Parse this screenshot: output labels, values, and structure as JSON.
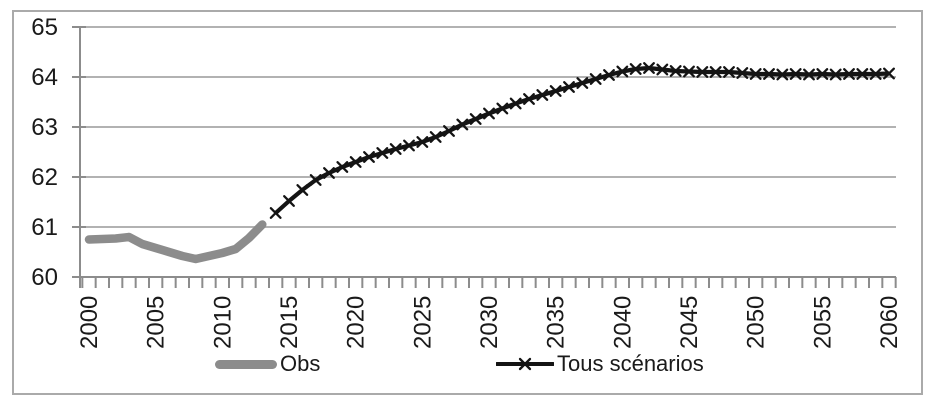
{
  "legend": {
    "obs_label": "Obs",
    "scenarios_label": "Tous scénarios"
  },
  "colors": {
    "background": "#ffffff",
    "border": "#aaaaaa",
    "gridline": "#b2b2b2",
    "axis": "#8c8c8c",
    "text": "#1a1a1a",
    "obs": "#8c8c8c",
    "scenarios": "#141414"
  },
  "chart_data": {
    "type": "line",
    "title": "",
    "xlabel": "",
    "ylabel": "",
    "ylim": [
      60,
      65
    ],
    "xlim": [
      2000,
      2060
    ],
    "grid": "horizontal",
    "legend_position": "bottom",
    "y_tick_labels": [
      "65",
      "64",
      "63",
      "62",
      "61",
      "60"
    ],
    "y_tick_values": [
      65,
      64,
      63,
      62,
      61,
      60
    ],
    "x_tick_labels": [
      "2000",
      "2005",
      "2010",
      "2015",
      "2020",
      "2025",
      "2030",
      "2035",
      "2040",
      "2045",
      "2050",
      "2055",
      "2060"
    ],
    "x_tick_values": [
      2000,
      2005,
      2010,
      2015,
      2020,
      2025,
      2030,
      2035,
      2040,
      2045,
      2050,
      2055,
      2060
    ],
    "series": [
      {
        "name": "Obs",
        "style": "thick-gray",
        "marker": "none",
        "x": [
          2000,
          2001,
          2002,
          2003,
          2004,
          2005,
          2006,
          2007,
          2008,
          2009,
          2010,
          2011,
          2012,
          2013
        ],
        "values": [
          60.75,
          60.76,
          60.77,
          60.8,
          60.66,
          60.58,
          60.5,
          60.42,
          60.36,
          60.42,
          60.48,
          60.56,
          60.78,
          61.05
        ]
      },
      {
        "name": "Tous scénarios",
        "style": "black",
        "marker": "x",
        "x": [
          2014,
          2015,
          2016,
          2017,
          2018,
          2019,
          2020,
          2021,
          2022,
          2023,
          2024,
          2025,
          2026,
          2027,
          2028,
          2029,
          2030,
          2031,
          2032,
          2033,
          2034,
          2035,
          2036,
          2037,
          2038,
          2039,
          2040,
          2041,
          2042,
          2043,
          2044,
          2045,
          2046,
          2047,
          2048,
          2049,
          2050,
          2051,
          2052,
          2053,
          2054,
          2055,
          2056,
          2057,
          2058,
          2059,
          2060
        ],
        "values": [
          61.28,
          61.52,
          61.74,
          61.94,
          62.08,
          62.2,
          62.3,
          62.4,
          62.48,
          62.56,
          62.63,
          62.7,
          62.8,
          62.92,
          63.05,
          63.16,
          63.27,
          63.37,
          63.47,
          63.56,
          63.64,
          63.72,
          63.8,
          63.88,
          63.96,
          64.04,
          64.11,
          64.16,
          64.18,
          64.15,
          64.12,
          64.11,
          64.1,
          64.1,
          64.1,
          64.08,
          64.06,
          64.06,
          64.05,
          64.06,
          64.05,
          64.06,
          64.05,
          64.06,
          64.06,
          64.06,
          64.07
        ]
      }
    ]
  }
}
